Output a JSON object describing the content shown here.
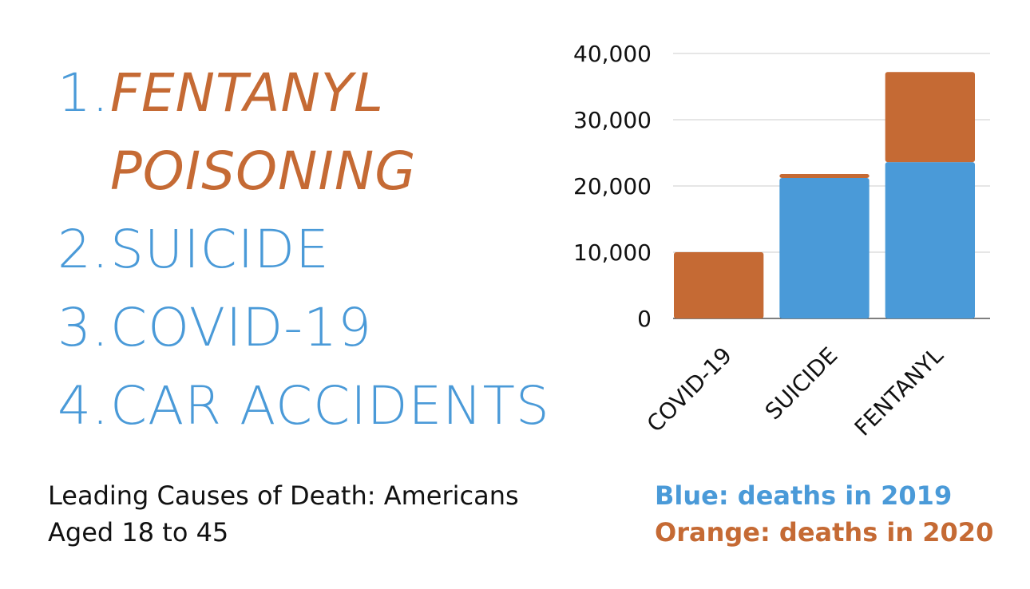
{
  "list": [
    {
      "num": "1.",
      "text_line1": "FENTANYL",
      "text_line2": "POISONING"
    },
    {
      "num": "2.",
      "text": "SUICIDE"
    },
    {
      "num": "3.",
      "text": "COVID-19"
    },
    {
      "num": "4.",
      "text": "CAR ACCIDENTS"
    }
  ],
  "caption": {
    "line1": "Leading Causes of Death: Americans",
    "line2": "Aged 18 to 45"
  },
  "legend": {
    "blue_text": "Blue: deaths in 2019",
    "orange_text": "Orange: deaths in 2020"
  },
  "colors": {
    "blue": "#4a9ad8",
    "orange": "#c56a34"
  },
  "chart_data": {
    "type": "bar",
    "stacked": true,
    "categories": [
      "COVID-19",
      "SUICIDE",
      "FENTANYL"
    ],
    "series": [
      {
        "name": "Blue: deaths in 2019",
        "color": "#4a9ad8",
        "values": [
          0,
          21200,
          23600
        ]
      },
      {
        "name": "Orange: deaths in 2020",
        "color": "#c56a34",
        "values": [
          10000,
          600,
          13600
        ]
      }
    ],
    "ylim": [
      0,
      40000
    ],
    "yticks": [
      0,
      10000,
      20000,
      30000,
      40000
    ],
    "ytick_labels": [
      "0",
      "10,000",
      "20,000",
      "30,000",
      "40,000"
    ],
    "grid": true,
    "xlabel": "",
    "ylabel": ""
  }
}
